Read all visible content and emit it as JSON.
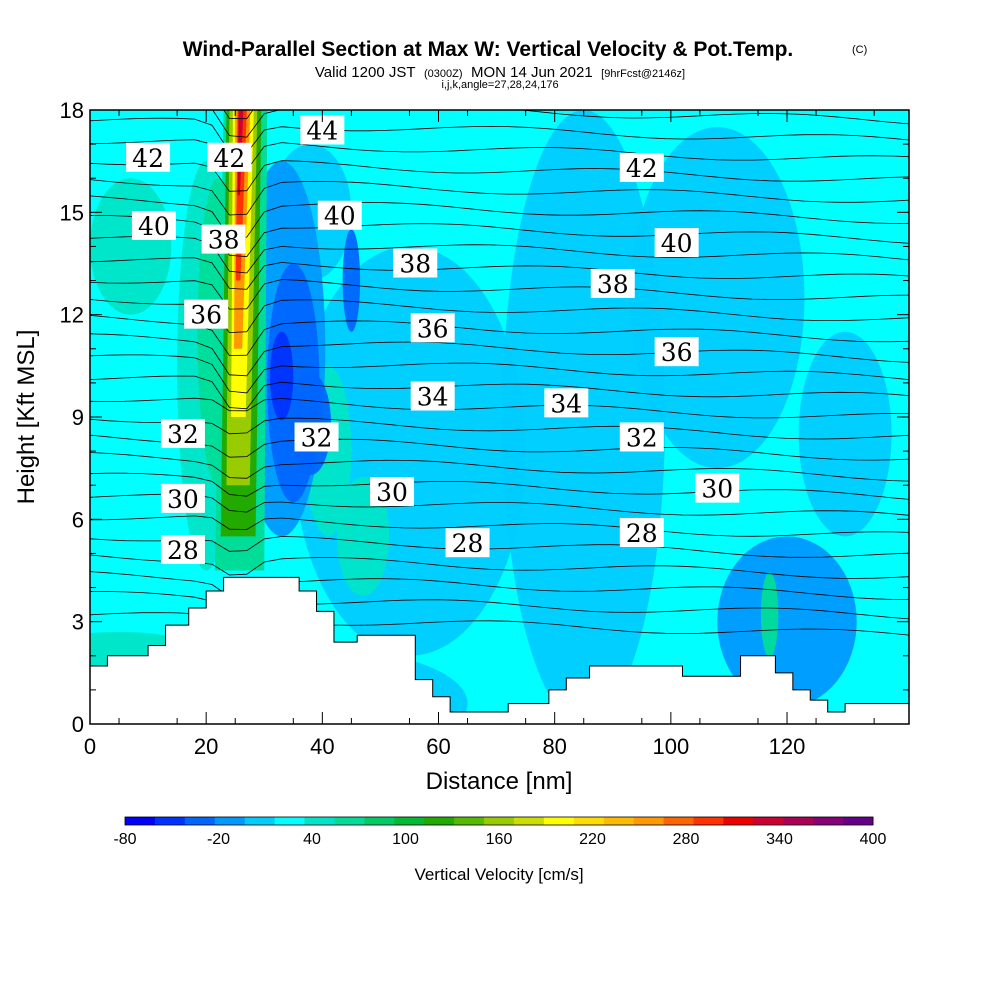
{
  "header": {
    "title": "Wind-Parallel Section at Max W: Vertical Velocity & Pot.Temp.",
    "copyright": "(C)",
    "valid_prefix": "Valid 1200 JST",
    "valid_utc": "(0300Z)",
    "valid_date": "MON 14 Jun 2021",
    "forecast": "[9hrFcst@2146z]",
    "indices": "i,j,k,angle=27,28,24,176"
  },
  "chart_data": {
    "type": "heatmap",
    "xlabel": "Distance [nm]",
    "ylabel": "Height [Kft MSL]",
    "xlim": [
      0,
      141
    ],
    "ylim": [
      0,
      18
    ],
    "x_ticks": [
      "0",
      "20",
      "40",
      "60",
      "80",
      "100",
      "120"
    ],
    "y_ticks": [
      "0",
      "3",
      "6",
      "9",
      "12",
      "15",
      "18"
    ],
    "terrain": [
      [
        0,
        1.7
      ],
      [
        3,
        2.0
      ],
      [
        10,
        2.3
      ],
      [
        13,
        2.9
      ],
      [
        17,
        3.4
      ],
      [
        20,
        3.9
      ],
      [
        23,
        4.3
      ],
      [
        36,
        3.9
      ],
      [
        39,
        3.3
      ],
      [
        42,
        2.4
      ],
      [
        46,
        2.6
      ],
      [
        56,
        1.3
      ],
      [
        59,
        0.8
      ],
      [
        62,
        0.35
      ],
      [
        72,
        0.6
      ],
      [
        79,
        1.0
      ],
      [
        82,
        1.35
      ],
      [
        86,
        1.7
      ],
      [
        102,
        1.4
      ],
      [
        112,
        2.0
      ],
      [
        118,
        1.5
      ],
      [
        121,
        1.0
      ],
      [
        124,
        0.7
      ],
      [
        127,
        0.35
      ],
      [
        130,
        0.6
      ],
      [
        141,
        0.6
      ]
    ],
    "theta_contours": {
      "labels": [
        {
          "text": "42",
          "x": 10,
          "y": 16.6
        },
        {
          "text": "42",
          "x": 24,
          "y": 16.6
        },
        {
          "text": "44",
          "x": 40,
          "y": 17.4
        },
        {
          "text": "42",
          "x": 95,
          "y": 16.3
        },
        {
          "text": "40",
          "x": 11,
          "y": 14.6
        },
        {
          "text": "38",
          "x": 23,
          "y": 14.2
        },
        {
          "text": "40",
          "x": 43,
          "y": 14.9
        },
        {
          "text": "38",
          "x": 56,
          "y": 13.5
        },
        {
          "text": "40",
          "x": 101,
          "y": 14.1
        },
        {
          "text": "38",
          "x": 90,
          "y": 12.9
        },
        {
          "text": "36",
          "x": 20,
          "y": 12.0
        },
        {
          "text": "36",
          "x": 59,
          "y": 11.6
        },
        {
          "text": "36",
          "x": 101,
          "y": 10.9
        },
        {
          "text": "34",
          "x": 59,
          "y": 9.6
        },
        {
          "text": "34",
          "x": 82,
          "y": 9.4
        },
        {
          "text": "32",
          "x": 16,
          "y": 8.5
        },
        {
          "text": "32",
          "x": 39,
          "y": 8.4
        },
        {
          "text": "32",
          "x": 95,
          "y": 8.4
        },
        {
          "text": "30",
          "x": 16,
          "y": 6.6
        },
        {
          "text": "30",
          "x": 52,
          "y": 6.8
        },
        {
          "text": "30",
          "x": 108,
          "y": 6.9
        },
        {
          "text": "28",
          "x": 16,
          "y": 5.1
        },
        {
          "text": "28",
          "x": 65,
          "y": 5.3
        },
        {
          "text": "28",
          "x": 95,
          "y": 5.6
        }
      ]
    },
    "colorbar": {
      "label": "Vertical Velocity [cm/s]",
      "levels": [
        -80,
        400
      ],
      "tick_labels": [
        "-80",
        "-20",
        "40",
        "100",
        "160",
        "220",
        "280",
        "340",
        "400"
      ],
      "colors": [
        "#0000ff",
        "#0033ff",
        "#0066ff",
        "#0099ff",
        "#00ccff",
        "#00ffff",
        "#00e5c8",
        "#00dd99",
        "#00cc66",
        "#00bb33",
        "#22aa00",
        "#55bb00",
        "#99cc00",
        "#ccdd00",
        "#ffff00",
        "#ffdd00",
        "#ffbb00",
        "#ff9900",
        "#ff6600",
        "#ff3300",
        "#ee0000",
        "#cc0033",
        "#aa0055",
        "#880077",
        "#660088"
      ]
    }
  }
}
